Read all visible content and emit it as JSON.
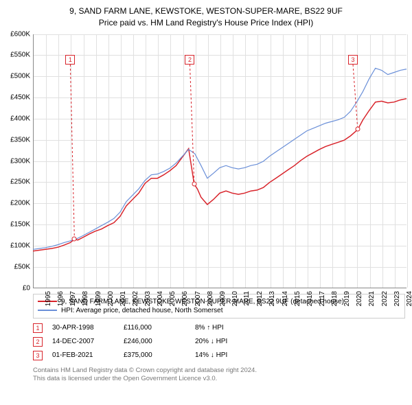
{
  "title": {
    "line1": "9, SAND FARM LANE, KEWSTOKE, WESTON-SUPER-MARE, BS22 9UF",
    "line2": "Price paid vs. HM Land Registry's House Price Index (HPI)"
  },
  "chart": {
    "type": "line",
    "background_color": "#ffffff",
    "grid_color": "#e0e0e0",
    "axis_color": "#888888",
    "x": {
      "min": 1995,
      "max": 2025,
      "tick_step": 1,
      "labels": [
        "1995",
        "1996",
        "1997",
        "1998",
        "1999",
        "2000",
        "2001",
        "2002",
        "2003",
        "2004",
        "2005",
        "2006",
        "2007",
        "2008",
        "2009",
        "2010",
        "2011",
        "2012",
        "2013",
        "2014",
        "2015",
        "2016",
        "2017",
        "2018",
        "2019",
        "2020",
        "2021",
        "2022",
        "2023",
        "2024",
        "2025"
      ]
    },
    "y": {
      "min": 0,
      "max": 600000,
      "tick_step": 50000,
      "labels": [
        "£0",
        "£50K",
        "£100K",
        "£150K",
        "£200K",
        "£250K",
        "£300K",
        "£350K",
        "£400K",
        "£450K",
        "£500K",
        "£550K",
        "£600K"
      ]
    },
    "series": [
      {
        "name": "9, SAND FARM LANE, KEWSTOKE, WESTON-SUPER-MARE, BS22 9UF (detached house)",
        "color": "#d8232a",
        "line_width": 1.5,
        "points": [
          [
            1995.0,
            88000
          ],
          [
            1995.5,
            90000
          ],
          [
            1996.0,
            92000
          ],
          [
            1996.5,
            94000
          ],
          [
            1997.0,
            97000
          ],
          [
            1997.5,
            102000
          ],
          [
            1998.0,
            108000
          ],
          [
            1998.33,
            116000
          ],
          [
            1998.6,
            114000
          ],
          [
            1999.0,
            120000
          ],
          [
            1999.5,
            128000
          ],
          [
            2000.0,
            135000
          ],
          [
            2000.5,
            140000
          ],
          [
            2001.0,
            148000
          ],
          [
            2001.5,
            155000
          ],
          [
            2002.0,
            170000
          ],
          [
            2002.5,
            195000
          ],
          [
            2003.0,
            210000
          ],
          [
            2003.5,
            225000
          ],
          [
            2004.0,
            248000
          ],
          [
            2004.5,
            260000
          ],
          [
            2005.0,
            260000
          ],
          [
            2005.5,
            268000
          ],
          [
            2006.0,
            278000
          ],
          [
            2006.5,
            290000
          ],
          [
            2007.0,
            310000
          ],
          [
            2007.5,
            330000
          ],
          [
            2007.95,
            246000
          ],
          [
            2008.2,
            235000
          ],
          [
            2008.5,
            215000
          ],
          [
            2009.0,
            198000
          ],
          [
            2009.5,
            210000
          ],
          [
            2010.0,
            225000
          ],
          [
            2010.5,
            230000
          ],
          [
            2011.0,
            225000
          ],
          [
            2011.5,
            222000
          ],
          [
            2012.0,
            225000
          ],
          [
            2012.5,
            230000
          ],
          [
            2013.0,
            232000
          ],
          [
            2013.5,
            238000
          ],
          [
            2014.0,
            250000
          ],
          [
            2014.5,
            260000
          ],
          [
            2015.0,
            270000
          ],
          [
            2015.5,
            280000
          ],
          [
            2016.0,
            290000
          ],
          [
            2016.5,
            302000
          ],
          [
            2017.0,
            312000
          ],
          [
            2017.5,
            320000
          ],
          [
            2018.0,
            328000
          ],
          [
            2018.5,
            335000
          ],
          [
            2019.0,
            340000
          ],
          [
            2019.5,
            345000
          ],
          [
            2020.0,
            350000
          ],
          [
            2020.5,
            360000
          ],
          [
            2021.08,
            375000
          ],
          [
            2021.5,
            398000
          ],
          [
            2022.0,
            420000
          ],
          [
            2022.5,
            440000
          ],
          [
            2023.0,
            442000
          ],
          [
            2023.5,
            438000
          ],
          [
            2024.0,
            440000
          ],
          [
            2024.5,
            445000
          ],
          [
            2025.0,
            448000
          ]
        ]
      },
      {
        "name": "HPI: Average price, detached house, North Somerset",
        "color": "#6a8fd8",
        "line_width": 1.2,
        "points": [
          [
            1995.0,
            92000
          ],
          [
            1995.5,
            94000
          ],
          [
            1996.0,
            96000
          ],
          [
            1996.5,
            99000
          ],
          [
            1997.0,
            103000
          ],
          [
            1997.5,
            108000
          ],
          [
            1998.0,
            112000
          ],
          [
            1998.5,
            117000
          ],
          [
            1999.0,
            124000
          ],
          [
            1999.5,
            132000
          ],
          [
            2000.0,
            140000
          ],
          [
            2000.5,
            148000
          ],
          [
            2001.0,
            156000
          ],
          [
            2001.5,
            165000
          ],
          [
            2002.0,
            180000
          ],
          [
            2002.5,
            205000
          ],
          [
            2003.0,
            220000
          ],
          [
            2003.5,
            235000
          ],
          [
            2004.0,
            255000
          ],
          [
            2004.5,
            268000
          ],
          [
            2005.0,
            270000
          ],
          [
            2005.5,
            276000
          ],
          [
            2006.0,
            284000
          ],
          [
            2006.5,
            296000
          ],
          [
            2007.0,
            312000
          ],
          [
            2007.5,
            328000
          ],
          [
            2008.0,
            318000
          ],
          [
            2008.5,
            290000
          ],
          [
            2009.0,
            260000
          ],
          [
            2009.5,
            272000
          ],
          [
            2010.0,
            285000
          ],
          [
            2010.5,
            290000
          ],
          [
            2011.0,
            285000
          ],
          [
            2011.5,
            282000
          ],
          [
            2012.0,
            285000
          ],
          [
            2012.5,
            290000
          ],
          [
            2013.0,
            293000
          ],
          [
            2013.5,
            300000
          ],
          [
            2014.0,
            312000
          ],
          [
            2014.5,
            322000
          ],
          [
            2015.0,
            332000
          ],
          [
            2015.5,
            342000
          ],
          [
            2016.0,
            352000
          ],
          [
            2016.5,
            362000
          ],
          [
            2017.0,
            372000
          ],
          [
            2017.5,
            378000
          ],
          [
            2018.0,
            384000
          ],
          [
            2018.5,
            390000
          ],
          [
            2019.0,
            394000
          ],
          [
            2019.5,
            398000
          ],
          [
            2020.0,
            404000
          ],
          [
            2020.5,
            418000
          ],
          [
            2021.0,
            440000
          ],
          [
            2021.5,
            465000
          ],
          [
            2022.0,
            495000
          ],
          [
            2022.5,
            520000
          ],
          [
            2023.0,
            515000
          ],
          [
            2023.5,
            505000
          ],
          [
            2024.0,
            510000
          ],
          [
            2024.5,
            515000
          ],
          [
            2025.0,
            518000
          ]
        ]
      }
    ],
    "markers": [
      {
        "n": "1",
        "color": "#d8232a",
        "x_box": 1998.0,
        "y_box": 540000,
        "x_dot": 1998.33,
        "y_dot": 116000
      },
      {
        "n": "2",
        "color": "#d8232a",
        "x_box": 2007.6,
        "y_box": 540000,
        "x_dot": 2007.95,
        "y_dot": 246000
      },
      {
        "n": "3",
        "color": "#d8232a",
        "x_box": 2020.7,
        "y_box": 540000,
        "x_dot": 2021.08,
        "y_dot": 375000
      }
    ]
  },
  "legend_series": [
    {
      "color": "#d8232a",
      "label": "9, SAND FARM LANE, KEWSTOKE, WESTON-SUPER-MARE, BS22 9UF (detached house)"
    },
    {
      "color": "#6a8fd8",
      "label": "HPI: Average price, detached house, North Somerset"
    }
  ],
  "marker_table": {
    "rows": [
      {
        "n": "1",
        "color": "#d8232a",
        "date": "30-APR-1998",
        "price": "£116,000",
        "diff": "8% ↑ HPI"
      },
      {
        "n": "2",
        "color": "#d8232a",
        "date": "14-DEC-2007",
        "price": "£246,000",
        "diff": "20% ↓ HPI"
      },
      {
        "n": "3",
        "color": "#d8232a",
        "date": "01-FEB-2021",
        "price": "£375,000",
        "diff": "14% ↓ HPI"
      }
    ]
  },
  "footer": {
    "line1": "Contains HM Land Registry data © Crown copyright and database right 2024.",
    "line2": "This data is licensed under the Open Government Licence v3.0."
  }
}
